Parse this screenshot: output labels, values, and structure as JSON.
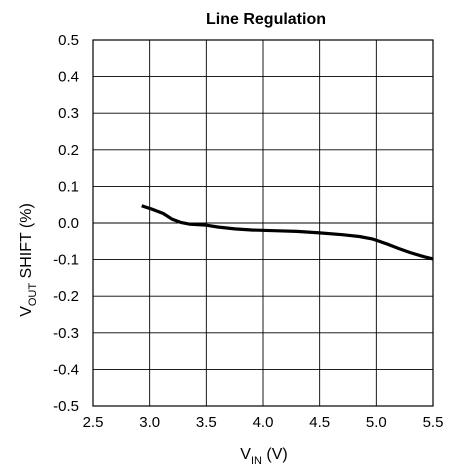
{
  "chart_data": {
    "type": "line",
    "title": "Line Regulation",
    "xlabel": {
      "main": "V",
      "sub": "IN",
      "unit": " (V)"
    },
    "ylabel": {
      "main": "V",
      "sub": "OUT",
      "unit": " SHIFT (%)"
    },
    "xlim": [
      2.5,
      5.5
    ],
    "ylim": [
      -0.5,
      0.5
    ],
    "x_ticks": [
      "2.5",
      "3.0",
      "3.5",
      "4.0",
      "4.5",
      "5.0",
      "5.5"
    ],
    "y_ticks": [
      "0.5",
      "0.4",
      "0.3",
      "0.2",
      "0.1",
      "0.0",
      "-0.1",
      "-0.2",
      "-0.3",
      "-0.4",
      "-0.5"
    ],
    "grid": true,
    "line_color": "#000000",
    "series": [
      {
        "x": [
          2.93,
          3.02,
          3.12,
          3.2,
          3.28,
          3.35,
          3.5,
          3.6,
          3.75,
          3.9,
          4.1,
          4.3,
          4.5,
          4.7,
          4.85,
          4.97,
          5.1,
          5.2,
          5.3,
          5.42,
          5.5
        ],
        "y": [
          0.047,
          0.038,
          0.026,
          0.01,
          0.001,
          -0.003,
          -0.006,
          -0.011,
          -0.016,
          -0.019,
          -0.021,
          -0.023,
          -0.027,
          -0.032,
          -0.037,
          -0.044,
          -0.058,
          -0.07,
          -0.081,
          -0.092,
          -0.098
        ]
      }
    ]
  }
}
